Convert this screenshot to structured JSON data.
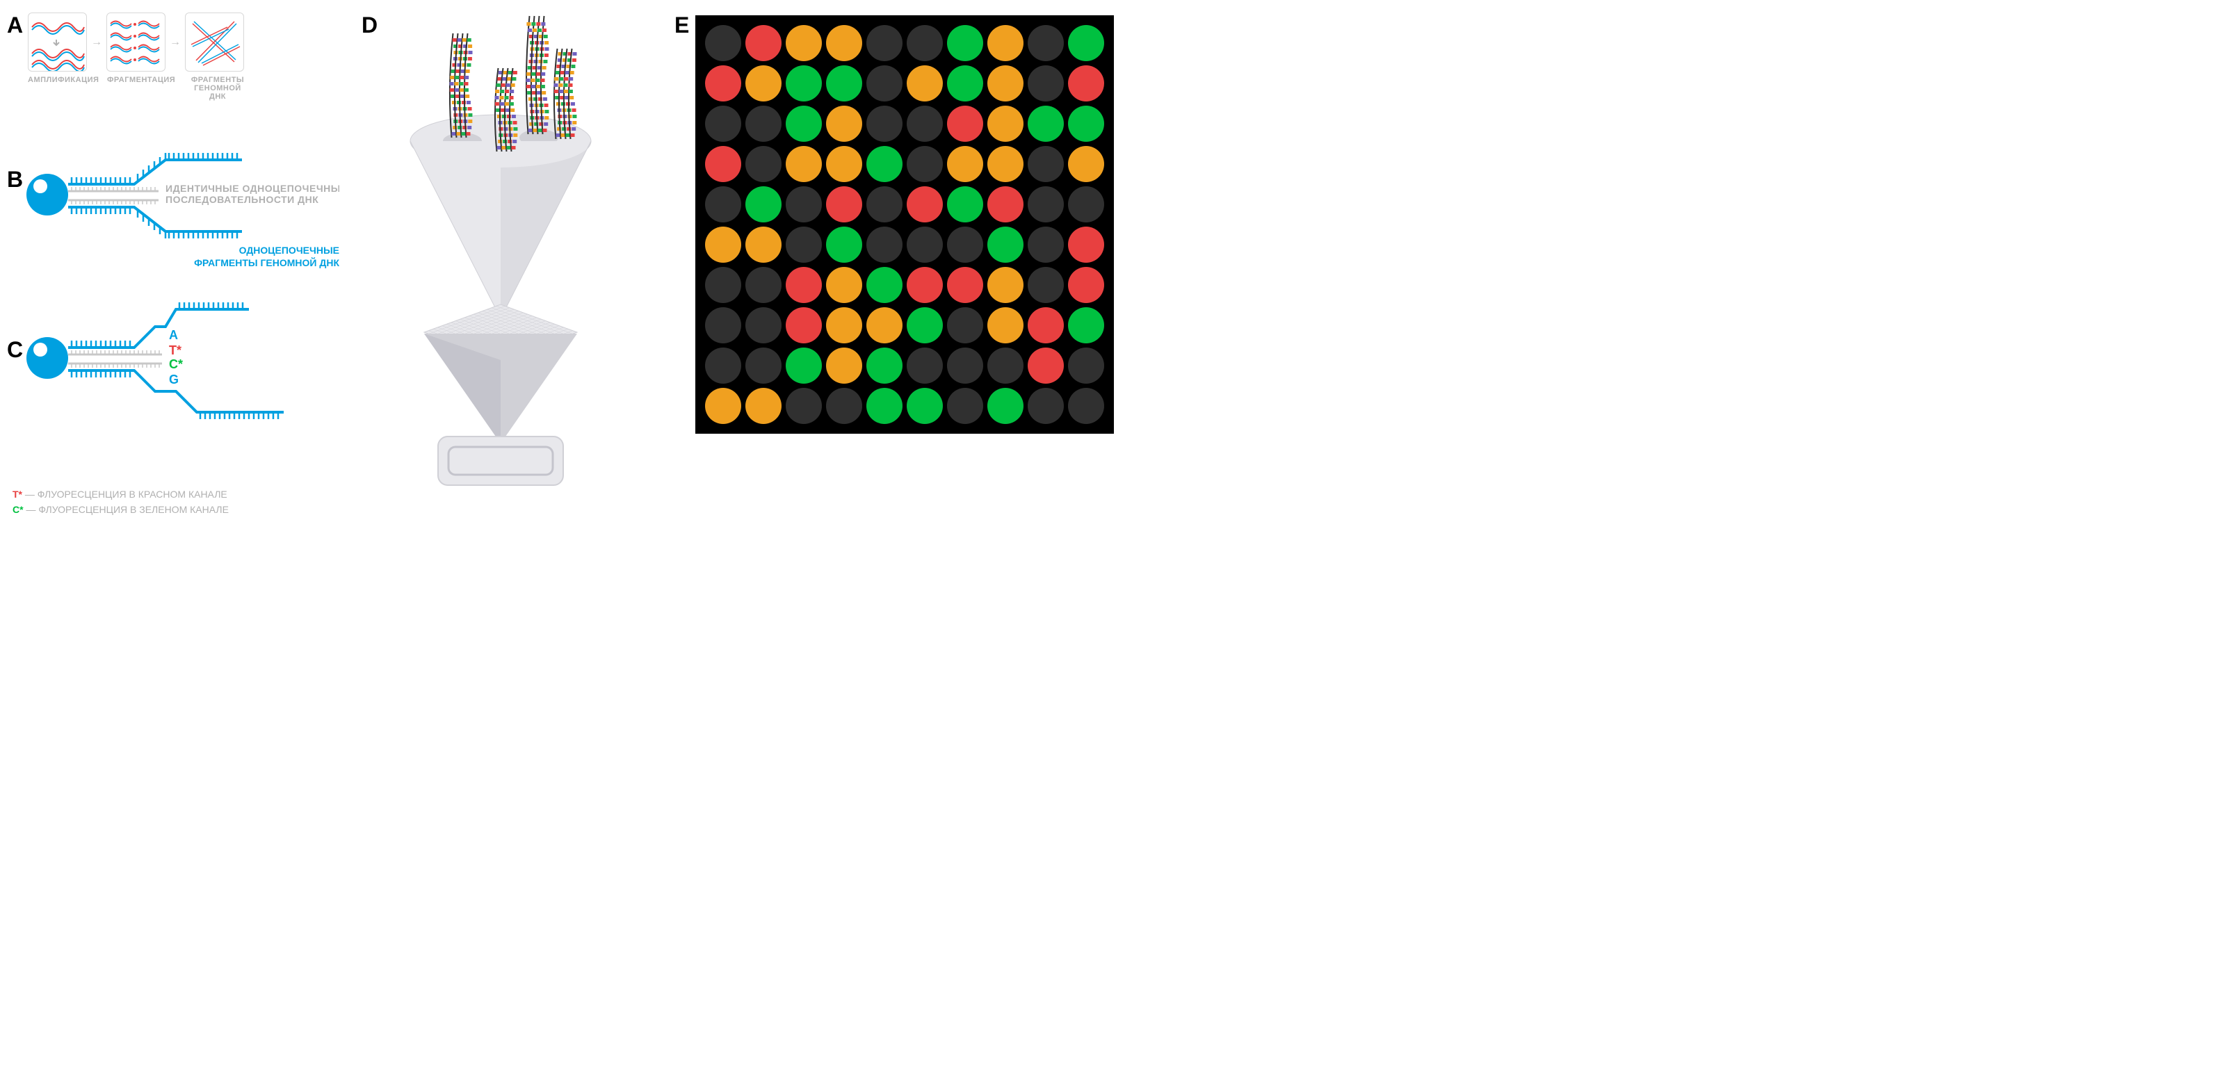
{
  "colors": {
    "dna_red": "#e84040",
    "dna_blue": "#00a0e0",
    "gray_text": "#b0b0b0",
    "gray_border": "#d8d8d8",
    "green": "#00c040",
    "label_black": "#000000",
    "dot_dark": "#303030",
    "dot_red": "#e84040",
    "dot_yellow": "#f0a020",
    "dot_green": "#00c040",
    "instrument_light": "#e8e8ec",
    "instrument_mid": "#d0d0d6",
    "instrument_dark": "#b8b8c0",
    "strand_purple": "#7060c0",
    "strand_orange": "#f0a020",
    "strand_green": "#20b050",
    "strand_red": "#e84040"
  },
  "panel_labels": {
    "a": "A",
    "b": "B",
    "c": "C",
    "d": "D",
    "e": "E"
  },
  "panel_a": {
    "labels": [
      "АМПЛИФИКАЦИЯ",
      "ФРАГМЕНТАЦИЯ",
      "ФРАГМЕНТЫ ГЕНОМНОЙ ДНК"
    ]
  },
  "panel_b": {
    "label1": "ИДЕНТИЧНЫЕ ОДНОЦЕПОЧЕЧНЫЕ",
    "label2": "ПОСЛЕДОВАТЕЛЬНОСТИ ДНК",
    "label3": "ОДНОЦЕПОЧЕЧНЫЕ",
    "label4": "ФРАГМЕНТЫ ГЕНОМНОЙ ДНК"
  },
  "panel_c": {
    "bases": [
      "A",
      "T*",
      "C*",
      "G"
    ]
  },
  "legend": {
    "t_label": "T*",
    "t_desc": "— ФЛУОРЕСЦЕНЦИЯ В КРАСНОМ КАНАЛЕ",
    "c_label": "C*",
    "c_desc": "— ФЛУОРЕСЦЕНЦИЯ В ЗЕЛЕНОМ КАНАЛЕ"
  },
  "panel_e": {
    "grid_rows": 10,
    "grid_cols": 10,
    "grid": [
      [
        "x",
        "r",
        "y",
        "y",
        "x",
        "x",
        "g",
        "y",
        "x",
        "g"
      ],
      [
        "r",
        "y",
        "g",
        "g",
        "x",
        "y",
        "g",
        "y",
        "x",
        "r"
      ],
      [
        "x",
        "x",
        "g",
        "y",
        "x",
        "x",
        "r",
        "y",
        "g",
        "g"
      ],
      [
        "r",
        "x",
        "y",
        "y",
        "g",
        "x",
        "y",
        "y",
        "x",
        "y"
      ],
      [
        "x",
        "g",
        "x",
        "r",
        "x",
        "r",
        "g",
        "r",
        "x",
        "x"
      ],
      [
        "y",
        "y",
        "x",
        "g",
        "x",
        "x",
        "x",
        "g",
        "x",
        "r"
      ],
      [
        "x",
        "x",
        "r",
        "y",
        "g",
        "r",
        "r",
        "y",
        "x",
        "r"
      ],
      [
        "x",
        "x",
        "r",
        "y",
        "y",
        "g",
        "x",
        "y",
        "r",
        "g"
      ],
      [
        "x",
        "x",
        "g",
        "y",
        "g",
        "x",
        "x",
        "x",
        "r",
        "x"
      ],
      [
        "y",
        "y",
        "x",
        "x",
        "g",
        "g",
        "x",
        "g",
        "x",
        "x"
      ]
    ]
  }
}
